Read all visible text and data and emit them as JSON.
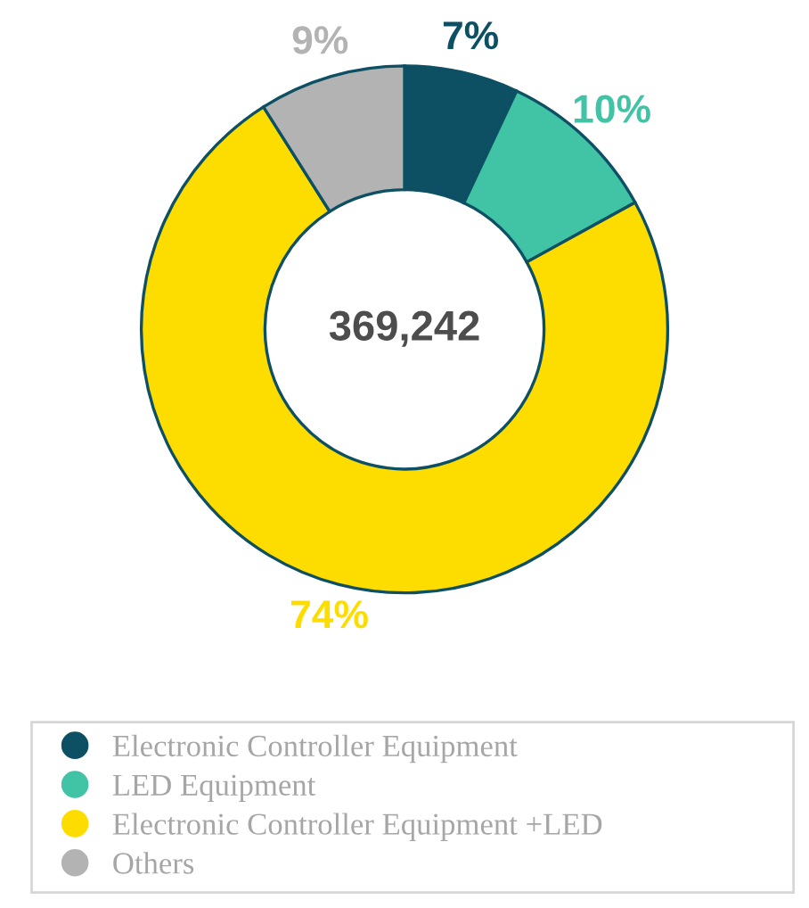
{
  "chart_data": {
    "type": "donut",
    "categories": [
      "Electronic Controller Equipment",
      "LED Equipment",
      "Electronic Controller Equipment +LED",
      "Others"
    ],
    "values": [
      7,
      10,
      74,
      9
    ],
    "colors": [
      "#0d4f63",
      "#41c3a5",
      "#fddc00",
      "#b3b3b3"
    ],
    "value_labels": [
      "7%",
      "10%",
      "74%",
      "9%"
    ],
    "annotations": [
      "369,242"
    ],
    "legend": "bottom"
  }
}
